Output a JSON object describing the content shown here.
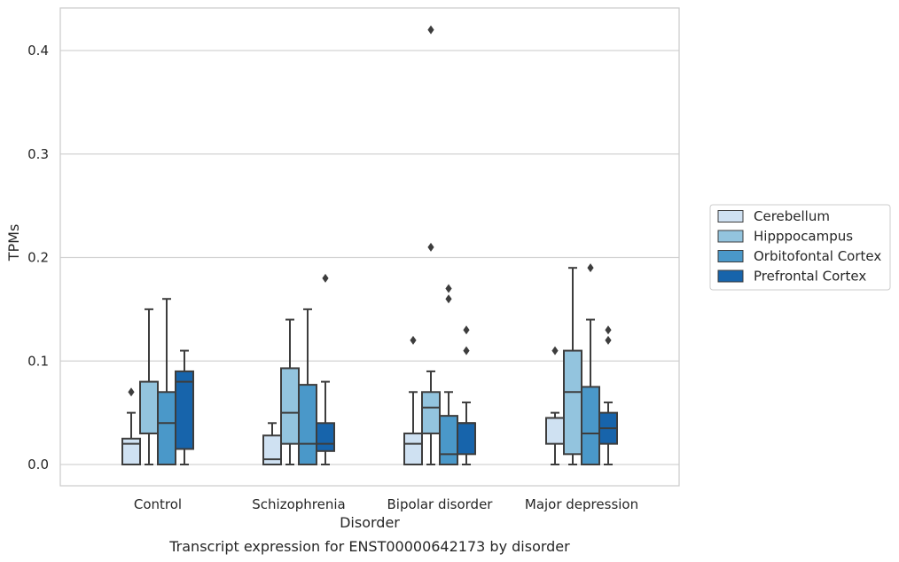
{
  "chart_data": {
    "type": "box",
    "caption": "Transcript expression for ENST00000642173 by disorder",
    "xlabel": "Disorder",
    "ylabel": "TPMs",
    "ylim": [
      -0.02,
      0.442
    ],
    "yticks": [
      0.0,
      0.1,
      0.2,
      0.3,
      0.4
    ],
    "ytick_labels": [
      "0.0",
      "0.1",
      "0.2",
      "0.3",
      "0.4"
    ],
    "grid": "horizontal",
    "legend_position": "right",
    "categories": [
      "Control",
      "Schizophrenia",
      "Bipolar disorder",
      "Major depression"
    ],
    "series": [
      {
        "name": "Cerebellum",
        "color": "#cfe1f2",
        "boxes": [
          {
            "whislo": 0.0,
            "q1": 0.0,
            "med": 0.02,
            "q3": 0.025,
            "whishi": 0.05,
            "fliers": [
              0.07
            ]
          },
          {
            "whislo": 0.0,
            "q1": 0.0,
            "med": 0.005,
            "q3": 0.028,
            "whishi": 0.04,
            "fliers": []
          },
          {
            "whislo": 0.0,
            "q1": 0.0,
            "med": 0.02,
            "q3": 0.03,
            "whishi": 0.07,
            "fliers": [
              0.12
            ]
          },
          {
            "whislo": 0.0,
            "q1": 0.02,
            "med": 0.045,
            "q3": 0.045,
            "whishi": 0.05,
            "fliers": [
              0.11
            ]
          }
        ]
      },
      {
        "name": "Hipppocampus",
        "color": "#93c4de",
        "boxes": [
          {
            "whislo": 0.0,
            "q1": 0.03,
            "med": 0.03,
            "q3": 0.08,
            "whishi": 0.15,
            "fliers": []
          },
          {
            "whislo": 0.0,
            "q1": 0.02,
            "med": 0.05,
            "q3": 0.093,
            "whishi": 0.14,
            "fliers": []
          },
          {
            "whislo": 0.0,
            "q1": 0.03,
            "med": 0.055,
            "q3": 0.07,
            "whishi": 0.09,
            "fliers": [
              0.21,
              0.42
            ]
          },
          {
            "whislo": 0.0,
            "q1": 0.01,
            "med": 0.07,
            "q3": 0.11,
            "whishi": 0.19,
            "fliers": []
          }
        ]
      },
      {
        "name": "Orbitofontal Cortex",
        "color": "#4a98c9",
        "boxes": [
          {
            "whislo": 0.0,
            "q1": 0.0,
            "med": 0.04,
            "q3": 0.07,
            "whishi": 0.16,
            "fliers": []
          },
          {
            "whislo": 0.0,
            "q1": 0.0,
            "med": 0.02,
            "q3": 0.077,
            "whishi": 0.15,
            "fliers": []
          },
          {
            "whislo": 0.0,
            "q1": 0.0,
            "med": 0.01,
            "q3": 0.047,
            "whishi": 0.07,
            "fliers": [
              0.16,
              0.17
            ]
          },
          {
            "whislo": 0.0,
            "q1": 0.0,
            "med": 0.03,
            "q3": 0.075,
            "whishi": 0.14,
            "fliers": [
              0.19
            ]
          }
        ]
      },
      {
        "name": "Prefrontal Cortex",
        "color": "#1764ab",
        "boxes": [
          {
            "whislo": 0.0,
            "q1": 0.015,
            "med": 0.08,
            "q3": 0.09,
            "whishi": 0.11,
            "fliers": []
          },
          {
            "whislo": 0.0,
            "q1": 0.013,
            "med": 0.02,
            "q3": 0.04,
            "whishi": 0.08,
            "fliers": [
              0.18
            ]
          },
          {
            "whislo": 0.0,
            "q1": 0.01,
            "med": 0.04,
            "q3": 0.04,
            "whishi": 0.06,
            "fliers": [
              0.11,
              0.13
            ]
          },
          {
            "whislo": 0.0,
            "q1": 0.02,
            "med": 0.035,
            "q3": 0.05,
            "whishi": 0.06,
            "fliers": [
              0.12,
              0.13
            ]
          }
        ]
      }
    ]
  }
}
